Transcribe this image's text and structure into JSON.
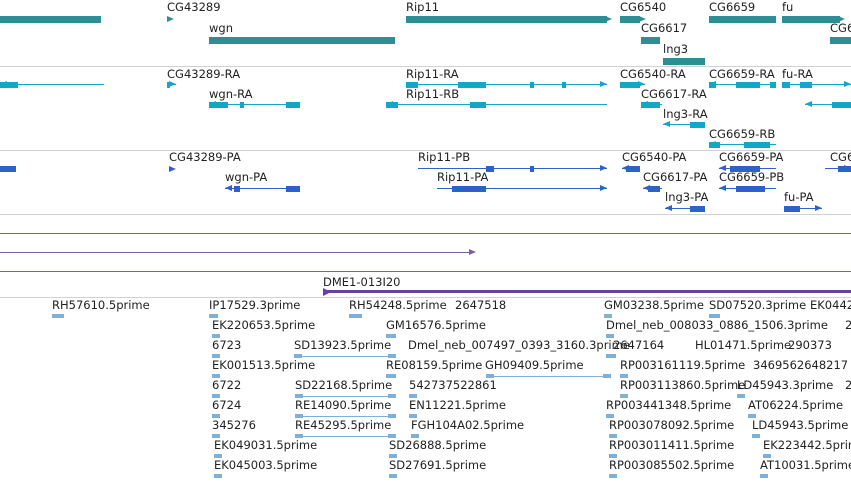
{
  "colors": {
    "gene": "#2c8f96",
    "transcript": "#12a7c6",
    "protein": "#2d62c8",
    "track_line": "#7d5fa5",
    "clone": "#6b3fa0",
    "est": "#7fb0d8",
    "separator": "#cfd3d8"
  },
  "tracks": {
    "genes": {
      "labels": [
        "CG43289",
        "wgn",
        "Rip11",
        "CG6540",
        "CG6617",
        "lng3",
        "CG6659",
        "fu",
        "CG6"
      ]
    },
    "transcripts": {
      "labels": [
        "CG43289-RA",
        "wgn-RA",
        "Rip11-RA",
        "Rip11-RB",
        "CG6540-RA",
        "CG6617-RA",
        "lng3-RA",
        "CG6659-RA",
        "fu-RA",
        "CG6659-RB"
      ]
    },
    "proteins": {
      "labels": [
        "CG43289-PA",
        "wgn-PA",
        "Rip11-PB",
        "Rip11-PA",
        "CG6540-PA",
        "CG6617-PA",
        "lng3-PA",
        "CG6659-PA",
        "CG6659-PB",
        "fu-PA",
        "CG6"
      ]
    },
    "clones": {
      "labels": [
        "DME1-013I20"
      ]
    },
    "ests": {
      "labels": [
        "RH57610.5prime",
        "IP17529.3prime",
        "RH54248.5prime",
        "2647518",
        "GM03238.5prime",
        "SD07520.3prime",
        "EK0442",
        "EK220653.5prime",
        "GM16576.5prime",
        "Dmel_neb_008033_0886_1506.3prime",
        "2",
        "6723",
        "SD13923.5prime",
        "Dmel_neb_007497_0393_3160.3prime",
        "2647164",
        "HL01471.5prime",
        "290373",
        "EK001513.5prime",
        "RE08159.5prime",
        "GH09409.5prime",
        "RP003161119.5prime",
        "3469562648217",
        "6722",
        "SD22168.5prime",
        "542737522861",
        "RP003113860.5prime",
        "LD45943.3prime",
        "2",
        "6724",
        "RE14090.5prime",
        "EN11221.5prime",
        "RP003441348.5prime",
        "AT06224.5prime",
        "345276",
        "RE45295.5prime",
        "FGH104A02.5prime",
        "RP003078092.5prime",
        "LD45943.5prime",
        "EK049031.5prime",
        "SD26888.5prime",
        "RP003011411.5prime",
        "EK223442.5prime",
        "EK045003.5prime",
        "SD27691.5prime",
        "RP003085502.5prime",
        "AT10031.5prime"
      ]
    }
  }
}
